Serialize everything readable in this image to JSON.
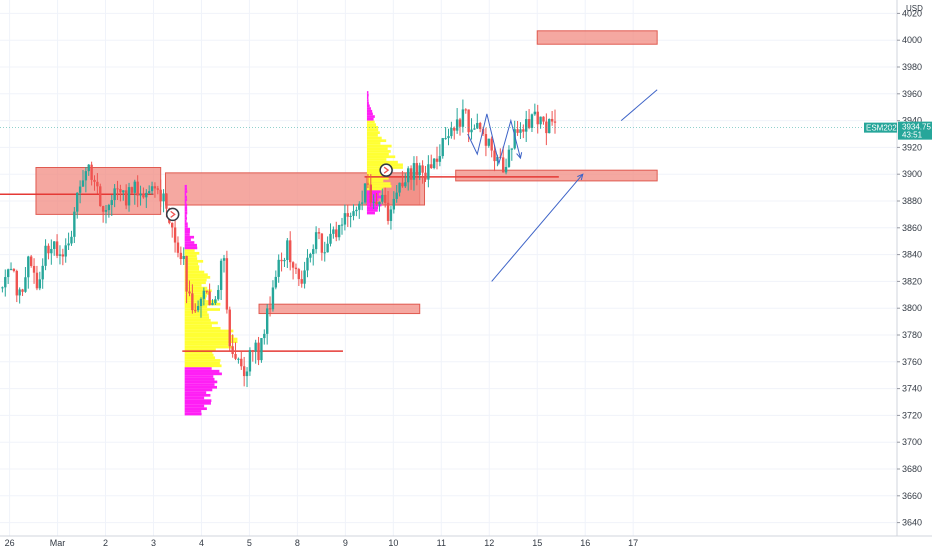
{
  "chart_data": {
    "type": "candlestick",
    "symbol": "ESM2021",
    "currency": "USD",
    "last_price": "3934.75",
    "countdown": "43:51",
    "ylim": [
      3630,
      4030
    ],
    "y_ticks": [
      3640,
      3660,
      3680,
      3700,
      3720,
      3740,
      3760,
      3780,
      3800,
      3820,
      3840,
      3860,
      3880,
      3900,
      3920,
      3940,
      3960,
      3980,
      4000,
      4020
    ],
    "xlim": [
      -1.2,
      17.5
    ],
    "x_ticks": [
      {
        "x": -1,
        "label": "26"
      },
      {
        "x": 0,
        "label": "Mar"
      },
      {
        "x": 1,
        "label": "2"
      },
      {
        "x": 2,
        "label": "3"
      },
      {
        "x": 3,
        "label": "4"
      },
      {
        "x": 4,
        "label": "5"
      },
      {
        "x": 5,
        "label": "8"
      },
      {
        "x": 6,
        "label": "9"
      },
      {
        "x": 7,
        "label": "10"
      },
      {
        "x": 8,
        "label": "11"
      },
      {
        "x": 9,
        "label": "12"
      },
      {
        "x": 10,
        "label": "15"
      },
      {
        "x": 11,
        "label": "16"
      },
      {
        "x": 12,
        "label": "17"
      }
    ],
    "colors": {
      "up": "#26a69a",
      "down": "#ef5350",
      "zone_fill": "#f28b82",
      "zone_stroke": "#e05a50",
      "profile_magenta": "#ff1ff5",
      "profile_yellow": "#ffff33",
      "drawing_blue": "#3d63c7",
      "level_red": "#e53935",
      "badge": "#26a69a"
    },
    "price_path": [
      [
        -1.15,
        3815
      ],
      [
        -1.0,
        3830
      ],
      [
        -0.8,
        3810
      ],
      [
        -0.6,
        3835
      ],
      [
        -0.4,
        3815
      ],
      [
        -0.25,
        3845
      ],
      [
        -0.1,
        3848
      ],
      [
        0.1,
        3842
      ],
      [
        0.3,
        3860
      ],
      [
        0.45,
        3890
      ],
      [
        0.6,
        3905
      ],
      [
        0.75,
        3895
      ],
      [
        0.9,
        3880
      ],
      [
        1.05,
        3875
      ],
      [
        1.2,
        3888
      ],
      [
        1.4,
        3880
      ],
      [
        1.6,
        3890
      ],
      [
        1.8,
        3882
      ],
      [
        2.0,
        3895
      ],
      [
        2.2,
        3880
      ],
      [
        2.4,
        3855
      ],
      [
        2.6,
        3840
      ],
      [
        2.75,
        3805
      ],
      [
        2.9,
        3795
      ],
      [
        3.05,
        3815
      ],
      [
        3.2,
        3800
      ],
      [
        3.35,
        3820
      ],
      [
        3.45,
        3840
      ],
      [
        3.6,
        3770
      ],
      [
        3.75,
        3760
      ],
      [
        3.9,
        3750
      ],
      [
        4.05,
        3775
      ],
      [
        4.2,
        3762
      ],
      [
        4.35,
        3790
      ],
      [
        4.5,
        3815
      ],
      [
        4.65,
        3840
      ],
      [
        4.8,
        3845
      ],
      [
        4.95,
        3830
      ],
      [
        5.1,
        3820
      ],
      [
        5.25,
        3840
      ],
      [
        5.4,
        3860
      ],
      [
        5.55,
        3835
      ],
      [
        5.7,
        3855
      ],
      [
        5.85,
        3860
      ],
      [
        6.0,
        3865
      ],
      [
        6.15,
        3870
      ],
      [
        6.3,
        3878
      ],
      [
        6.45,
        3890
      ],
      [
        6.6,
        3872
      ],
      [
        6.75,
        3880
      ],
      [
        6.9,
        3865
      ],
      [
        7.05,
        3885
      ],
      [
        7.2,
        3895
      ],
      [
        7.35,
        3900
      ],
      [
        7.5,
        3905
      ],
      [
        7.65,
        3900
      ],
      [
        7.8,
        3910
      ],
      [
        7.95,
        3918
      ],
      [
        8.1,
        3925
      ],
      [
        8.25,
        3930
      ],
      [
        8.4,
        3940
      ],
      [
        8.5,
        3950
      ],
      [
        8.6,
        3928
      ],
      [
        8.75,
        3935
      ],
      [
        8.9,
        3922
      ],
      [
        9.05,
        3918
      ],
      [
        9.2,
        3905
      ],
      [
        9.35,
        3910
      ],
      [
        9.5,
        3925
      ],
      [
        9.65,
        3935
      ],
      [
        9.8,
        3940
      ],
      [
        9.95,
        3945
      ],
      [
        10.1,
        3938
      ],
      [
        10.25,
        3936
      ],
      [
        10.4,
        3935
      ]
    ],
    "zones": [
      {
        "x0": -0.45,
        "x1": 2.15,
        "y0": 3870,
        "y1": 3905
      },
      {
        "x0": 2.25,
        "x1": 7.55,
        "y0": 3877,
        "y1": 3901
      },
      {
        "x0": 6.45,
        "x1": 7.65,
        "y0": 3877,
        "y1": 3898
      },
      {
        "x0": 4.2,
        "x1": 7.55,
        "y0": 3796,
        "y1": 3803
      },
      {
        "x0": 8.3,
        "x1": 12.5,
        "y0": 3895,
        "y1": 3903
      },
      {
        "x0": 10.0,
        "x1": 12.5,
        "y0": 3997,
        "y1": 4007
      }
    ],
    "levels": [
      {
        "x0": -1.2,
        "x1": 2.0,
        "y": 3885
      },
      {
        "x0": 2.6,
        "x1": 5.95,
        "y": 3768
      },
      {
        "x0": 6.4,
        "x1": 10.45,
        "y": 3898
      }
    ],
    "profiles": [
      {
        "x": 2.65,
        "y0": 3720,
        "y1": 3890,
        "width": 1.1,
        "poc": 3775,
        "va_low": 3755,
        "va_high": 3842
      },
      {
        "x": 6.45,
        "y0": 3870,
        "y1": 3960,
        "width": 0.75,
        "poc": 3905,
        "va_low": 3888,
        "va_high": 3938
      }
    ],
    "lines": [
      {
        "points": [
          [
            9.05,
            3820
          ],
          [
            10.95,
            3900
          ]
        ],
        "arrow": true
      },
      {
        "points": [
          [
            11.75,
            3940
          ],
          [
            12.5,
            3963
          ]
        ],
        "arrow": false
      },
      {
        "points": [
          [
            8.55,
            3930
          ],
          [
            8.75,
            3915
          ],
          [
            8.95,
            3945
          ],
          [
            9.2,
            3908
          ],
          [
            9.45,
            3940
          ],
          [
            9.65,
            3912
          ]
        ],
        "arrow": true
      }
    ],
    "markers": [
      {
        "x": 2.4,
        "y": 3870
      },
      {
        "x": 6.85,
        "y": 3903
      }
    ]
  }
}
